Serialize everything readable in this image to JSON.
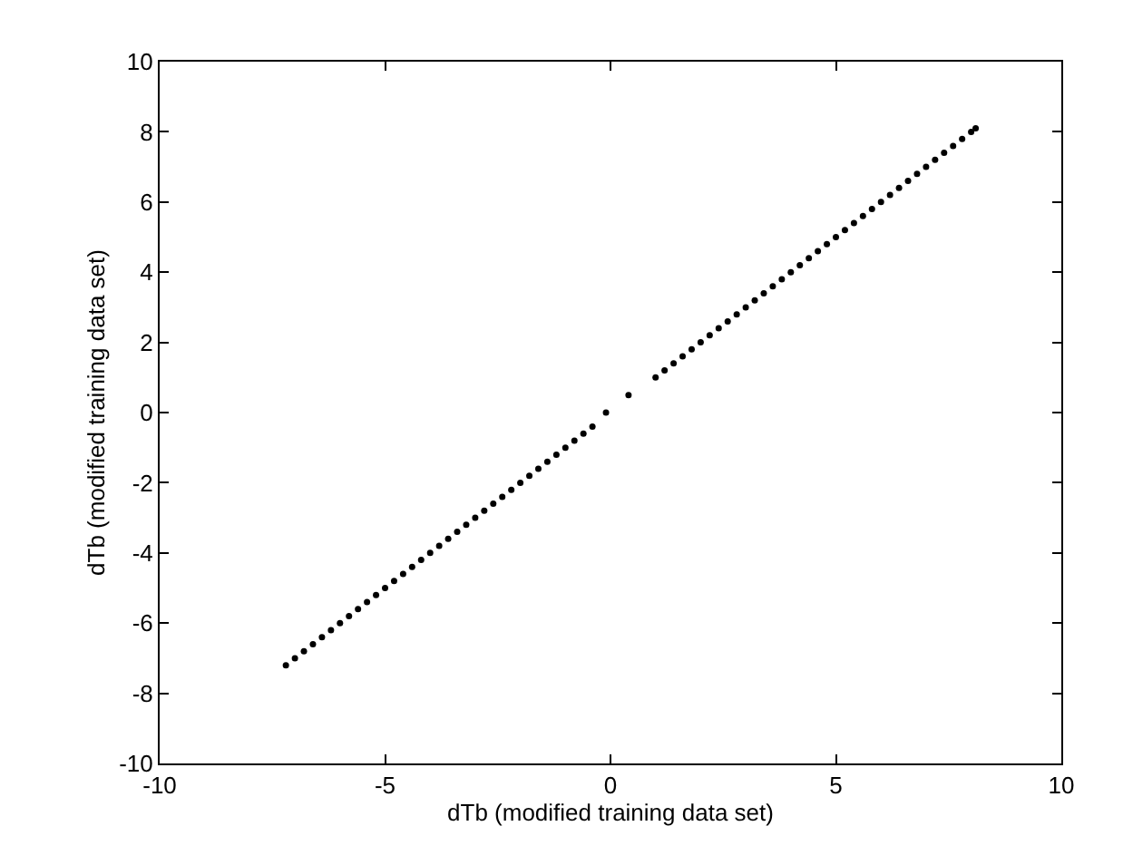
{
  "chart_data": {
    "type": "scatter",
    "xlabel": "dTb (modified training data set)",
    "ylabel": "dTb (modified training data set)",
    "xlim": [
      -10,
      10
    ],
    "xticks": [
      -10,
      -5,
      0,
      5,
      10
    ],
    "ylim": [
      -10,
      10
    ],
    "yticks": [
      -10,
      -8,
      -6,
      -4,
      -2,
      0,
      2,
      4,
      6,
      8,
      10
    ],
    "marker": "circle",
    "series": [
      {
        "color": "#000000",
        "x": [
          -7.2,
          -7.0,
          -6.8,
          -6.6,
          -6.4,
          -6.2,
          -6.0,
          -5.8,
          -5.6,
          -5.4,
          -5.2,
          -5.0,
          -4.8,
          -4.6,
          -4.4,
          -4.2,
          -4.0,
          -3.8,
          -3.6,
          -3.4,
          -3.2,
          -3.0,
          -2.8,
          -2.6,
          -2.4,
          -2.2,
          -2.0,
          -1.8,
          -1.6,
          -1.4,
          -1.2,
          -1.0,
          -0.8,
          -0.6,
          -0.4,
          -0.1,
          0.4,
          1.0,
          1.2,
          1.4,
          1.6,
          1.8,
          2.0,
          2.2,
          2.4,
          2.6,
          2.8,
          3.0,
          3.2,
          3.4,
          3.6,
          3.8,
          4.0,
          4.2,
          4.4,
          4.6,
          4.8,
          5.0,
          5.2,
          5.4,
          5.6,
          5.8,
          6.0,
          6.2,
          6.4,
          6.6,
          6.8,
          7.0,
          7.2,
          7.4,
          7.6,
          7.8,
          8.0,
          8.1
        ],
        "values": [
          -7.2,
          -7.0,
          -6.8,
          -6.6,
          -6.4,
          -6.2,
          -6.0,
          -5.8,
          -5.6,
          -5.4,
          -5.2,
          -5.0,
          -4.8,
          -4.6,
          -4.4,
          -4.2,
          -4.0,
          -3.8,
          -3.6,
          -3.4,
          -3.2,
          -3.0,
          -2.8,
          -2.6,
          -2.4,
          -2.2,
          -2.0,
          -1.8,
          -1.6,
          -1.4,
          -1.2,
          -1.0,
          -0.8,
          -0.6,
          -0.4,
          0.0,
          0.5,
          1.0,
          1.2,
          1.4,
          1.6,
          1.8,
          2.0,
          2.2,
          2.4,
          2.6,
          2.8,
          3.0,
          3.2,
          3.4,
          3.6,
          3.8,
          4.0,
          4.2,
          4.4,
          4.6,
          4.8,
          5.0,
          5.2,
          5.4,
          5.6,
          5.8,
          6.0,
          6.2,
          6.4,
          6.6,
          6.8,
          7.0,
          7.2,
          7.4,
          7.6,
          7.8,
          8.0,
          8.1
        ]
      }
    ]
  }
}
